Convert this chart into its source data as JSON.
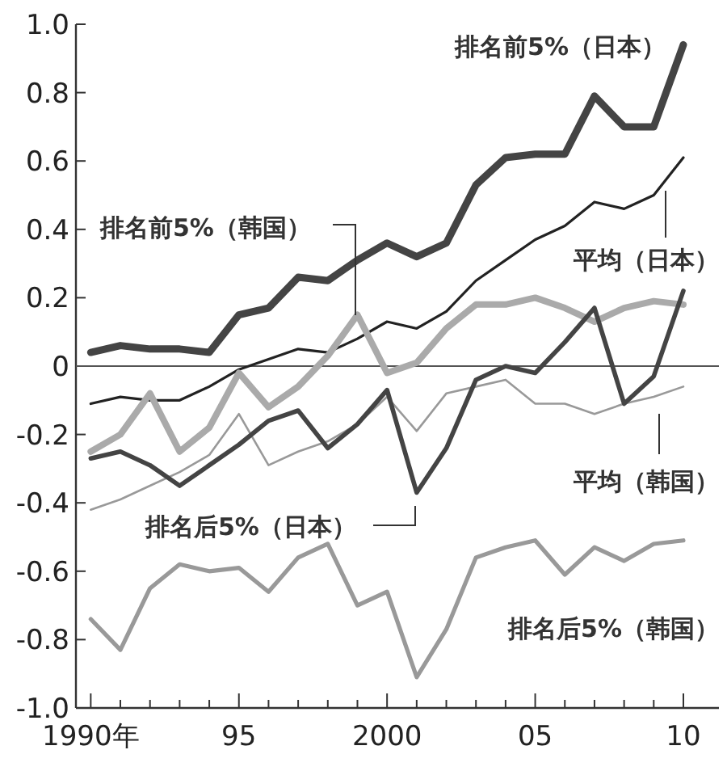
{
  "chart_data": {
    "type": "line",
    "x": [
      1990,
      1991,
      1992,
      1993,
      1994,
      1995,
      1996,
      1997,
      1998,
      1999,
      2000,
      2001,
      2002,
      2003,
      2004,
      2005,
      2006,
      2007,
      2008,
      2009,
      2010
    ],
    "series": [
      {
        "name": "排名前5%（日本）",
        "color": "#444444",
        "values": [
          0.04,
          0.06,
          0.05,
          0.05,
          0.04,
          0.15,
          0.17,
          0.26,
          0.25,
          0.31,
          0.36,
          0.32,
          0.36,
          0.53,
          0.61,
          0.62,
          0.62,
          0.79,
          0.7,
          0.7,
          0.94
        ]
      },
      {
        "name": "平均（日本）",
        "color": "#222222",
        "values": [
          -0.11,
          -0.09,
          -0.1,
          -0.1,
          -0.06,
          -0.01,
          0.02,
          0.05,
          0.04,
          0.08,
          0.13,
          0.11,
          0.16,
          0.25,
          0.31,
          0.37,
          0.41,
          0.48,
          0.46,
          0.5,
          0.61
        ]
      },
      {
        "name": "排名前5%（韩国）",
        "color": "#aaaaaa",
        "values": [
          -0.25,
          -0.2,
          -0.08,
          -0.25,
          -0.18,
          -0.02,
          -0.12,
          -0.06,
          0.03,
          0.15,
          -0.02,
          0.01,
          0.11,
          0.18,
          0.18,
          0.2,
          0.17,
          0.13,
          0.17,
          0.19,
          0.18
        ]
      },
      {
        "name": "平均（韩国）",
        "color": "#999999",
        "values": [
          -0.42,
          -0.39,
          -0.35,
          -0.31,
          -0.26,
          -0.14,
          -0.29,
          -0.25,
          -0.22,
          -0.17,
          -0.09,
          -0.19,
          -0.08,
          -0.06,
          -0.04,
          -0.11,
          -0.11,
          -0.14,
          -0.11,
          -0.09,
          -0.06
        ]
      },
      {
        "name": "排名后5%（日本）",
        "color": "#444444",
        "values": [
          -0.27,
          -0.25,
          -0.29,
          -0.35,
          -0.29,
          -0.23,
          -0.16,
          -0.13,
          -0.24,
          -0.17,
          -0.07,
          -0.37,
          -0.24,
          -0.04,
          0.0,
          -0.02,
          0.07,
          0.17,
          -0.11,
          -0.03,
          0.22
        ]
      },
      {
        "name": "排名后5%（韩国）",
        "color": "#999999",
        "values": [
          -0.74,
          -0.83,
          -0.65,
          -0.58,
          -0.6,
          -0.59,
          -0.66,
          -0.56,
          -0.52,
          -0.7,
          -0.66,
          -0.91,
          -0.77,
          -0.56,
          -0.53,
          -0.51,
          -0.61,
          -0.53,
          -0.57,
          -0.52,
          -0.51
        ]
      }
    ],
    "xlim": [
      1989.5,
      2011.2
    ],
    "xticks": [
      {
        "value": 1990,
        "label": "1990年"
      },
      {
        "value": 1991,
        "label": null
      },
      {
        "value": 1992,
        "label": null
      },
      {
        "value": 1993,
        "label": null
      },
      {
        "value": 1994,
        "label": null
      },
      {
        "value": 1995,
        "label": "95"
      },
      {
        "value": 1996,
        "label": null
      },
      {
        "value": 1997,
        "label": null
      },
      {
        "value": 1998,
        "label": null
      },
      {
        "value": 1999,
        "label": null
      },
      2000,
      {
        "value": 2001,
        "label": null
      },
      {
        "value": 2002,
        "label": null
      },
      {
        "value": 2003,
        "label": null
      },
      {
        "value": 2004,
        "label": null
      },
      {
        "value": 2005,
        "label": "05"
      },
      {
        "value": 2006,
        "label": null
      },
      {
        "value": 2007,
        "label": null
      },
      {
        "value": 2008,
        "label": null
      },
      {
        "value": 2009,
        "label": null
      },
      {
        "value": 2010,
        "label": "10"
      }
    ],
    "ylim": [
      -1.0,
      1.0
    ],
    "yticks": [
      {
        "value": 1.0,
        "label": "1.0"
      },
      0.8,
      0.6,
      0.4,
      0.2,
      0,
      -0.2,
      -0.4,
      -0.6,
      -0.8,
      {
        "value": -1.0,
        "label": "-1.0"
      }
    ],
    "ref_lines": [
      {
        "axis": "y",
        "value": 0,
        "color": "#555555"
      }
    ],
    "grid": false,
    "legend": false,
    "marker": "none",
    "line_style": "solid"
  }
}
